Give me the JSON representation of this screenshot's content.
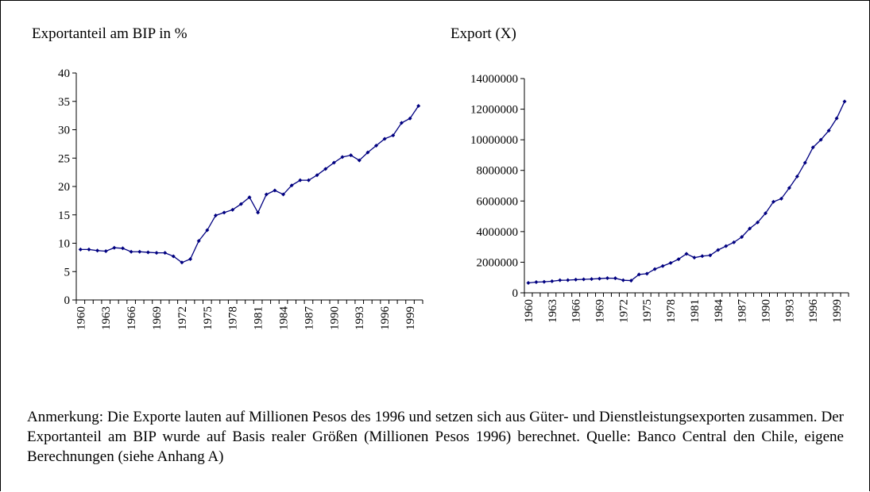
{
  "chart_data": [
    {
      "type": "line",
      "title": "Exportanteil am BIP in %",
      "categories": [
        "1960",
        null,
        null,
        "1963",
        null,
        null,
        "1966",
        null,
        null,
        "1969",
        null,
        null,
        "1972",
        null,
        null,
        "1975",
        null,
        null,
        "1978",
        null,
        null,
        "1981",
        null,
        null,
        "1984",
        null,
        null,
        "1987",
        null,
        null,
        "1990",
        null,
        null,
        "1993",
        null,
        null,
        "1996",
        null,
        null,
        "1999",
        null
      ],
      "series": [
        {
          "color": "#000080",
          "values": [
            8.9,
            8.9,
            8.7,
            8.6,
            9.2,
            9.1,
            8.5,
            8.5,
            8.4,
            8.3,
            8.3,
            7.7,
            6.6,
            7.2,
            10.4,
            12.3,
            14.9,
            15.4,
            15.9,
            16.9,
            18.1,
            15.4,
            18.6,
            19.3,
            18.6,
            20.2,
            21.1,
            21.1,
            22.0,
            23.1,
            24.2,
            25.2,
            25.5,
            24.6,
            26.0,
            27.2,
            28.4,
            29.0,
            31.2,
            32.0,
            34.2
          ]
        }
      ],
      "ylim": [
        0,
        40
      ],
      "yticks": [
        0,
        5,
        10,
        15,
        20,
        25,
        30,
        35,
        40
      ]
    },
    {
      "type": "line",
      "title": "Export (X)",
      "categories": [
        "1960",
        null,
        null,
        "1963",
        null,
        null,
        "1966",
        null,
        null,
        "1969",
        null,
        null,
        "1972",
        null,
        null,
        "1975",
        null,
        null,
        "1978",
        null,
        null,
        "1981",
        null,
        null,
        "1984",
        null,
        null,
        "1987",
        null,
        null,
        "1990",
        null,
        null,
        "1993",
        null,
        null,
        "1996",
        null,
        null,
        "1999",
        null
      ],
      "series": [
        {
          "color": "#000080",
          "values": [
            650000,
            700000,
            720000,
            760000,
            820000,
            830000,
            860000,
            880000,
            900000,
            930000,
            960000,
            950000,
            820000,
            800000,
            1200000,
            1250000,
            1550000,
            1750000,
            1950000,
            2200000,
            2550000,
            2300000,
            2400000,
            2450000,
            2800000,
            3050000,
            3300000,
            3650000,
            4200000,
            4600000,
            5200000,
            5950000,
            6150000,
            6850000,
            7600000,
            8500000,
            9500000,
            10000000,
            10600000,
            11400000,
            12500000
          ]
        }
      ],
      "ylim": [
        0,
        14000000
      ],
      "yticks": [
        0,
        2000000,
        4000000,
        6000000,
        8000000,
        10000000,
        12000000,
        14000000
      ]
    }
  ],
  "note": "Anmerkung: Die Exporte lauten auf  Millionen Pesos des 1996 und setzen sich aus Güter- und Dienstleistungsexporten zusammen. Der Exportanteil am BIP wurde auf Basis realer Größen (Millionen Pesos 1996) berechnet. Quelle: Banco Central den Chile, eigene Berechnungen (siehe Anhang A)"
}
